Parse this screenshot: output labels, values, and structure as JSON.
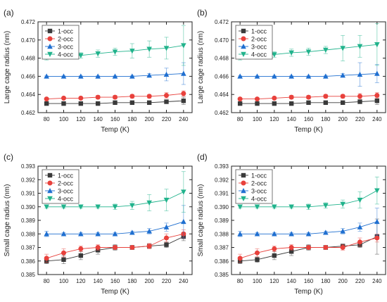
{
  "chart_data": [
    {
      "panel_label": "(a)",
      "type": "scatter",
      "xlabel": "Temp (K)",
      "ylabel": "Large cage radius (nm)",
      "x": [
        80,
        100,
        120,
        140,
        160,
        180,
        200,
        220,
        240
      ],
      "xlim": [
        70,
        250
      ],
      "ylim": [
        0.462,
        0.472
      ],
      "xticks": [
        "80",
        "100",
        "120",
        "140",
        "160",
        "180",
        "200",
        "220",
        "240"
      ],
      "yticks": [
        "0.462",
        "0.464",
        "0.466",
        "0.468",
        "0.470",
        "0.472"
      ],
      "legend_position": "top-left",
      "series": [
        {
          "name": "1-occ",
          "marker": "square",
          "color": "#3a3a3a",
          "values": [
            0.463,
            0.463,
            0.463,
            0.463,
            0.4631,
            0.4631,
            0.4631,
            0.4632,
            0.4633
          ],
          "errors": [
            5e-05,
            5e-05,
            5e-05,
            5e-05,
            5e-05,
            8e-05,
            0.0001,
            0.0002,
            0.0004
          ]
        },
        {
          "name": "2-occ",
          "marker": "circle",
          "color": "#e8413c",
          "values": [
            0.4635,
            0.4636,
            0.4636,
            0.4637,
            0.4637,
            0.4638,
            0.4638,
            0.4639,
            0.4641
          ],
          "errors": [
            0.0001,
            0.0001,
            0.0001,
            0.0002,
            0.0002,
            0.0002,
            0.0002,
            0.0003,
            0.0003
          ]
        },
        {
          "name": "3-occ",
          "marker": "triangle-up",
          "color": "#1f6fd0",
          "values": [
            0.466,
            0.466,
            0.466,
            0.466,
            0.466,
            0.466,
            0.4661,
            0.4662,
            0.4663
          ],
          "errors": [
            5e-05,
            5e-05,
            5e-05,
            5e-05,
            5e-05,
            0.0001,
            0.0002,
            0.0007,
            0.0012
          ]
        },
        {
          "name": "4-occ",
          "marker": "triangle-down",
          "color": "#21b38c",
          "values": [
            0.4681,
            0.4682,
            0.4683,
            0.4685,
            0.4687,
            0.4688,
            0.469,
            0.4691,
            0.4694
          ],
          "errors": [
            0.0003,
            0.0003,
            0.0003,
            0.0004,
            0.0004,
            0.0008,
            0.0009,
            0.0012,
            0.0022
          ]
        }
      ]
    },
    {
      "panel_label": "(b)",
      "type": "scatter",
      "xlabel": "Temp (K)",
      "ylabel": "Large cage radius (nm)",
      "x": [
        80,
        100,
        120,
        140,
        160,
        180,
        200,
        220,
        240
      ],
      "xlim": [
        70,
        250
      ],
      "ylim": [
        0.462,
        0.472
      ],
      "xticks": [
        "80",
        "100",
        "120",
        "140",
        "160",
        "180",
        "200",
        "220",
        "240"
      ],
      "yticks": [
        "0.462",
        "0.464",
        "0.466",
        "0.468",
        "0.470",
        "0.472"
      ],
      "legend_position": "top-left",
      "series": [
        {
          "name": "1-occ",
          "marker": "square",
          "color": "#3a3a3a",
          "values": [
            0.463,
            0.463,
            0.463,
            0.463,
            0.4631,
            0.4631,
            0.4631,
            0.4632,
            0.4633
          ],
          "errors": [
            5e-05,
            5e-05,
            5e-05,
            5e-05,
            5e-05,
            8e-05,
            0.0001,
            0.0002,
            0.0004
          ]
        },
        {
          "name": "2-occ",
          "marker": "circle",
          "color": "#e8413c",
          "values": [
            0.4635,
            0.4635,
            0.4636,
            0.4637,
            0.4637,
            0.4638,
            0.4638,
            0.4638,
            0.4639
          ],
          "errors": [
            0.0001,
            0.0001,
            0.0001,
            0.0002,
            0.0002,
            0.0002,
            0.0002,
            0.0003,
            0.0003
          ]
        },
        {
          "name": "3-occ",
          "marker": "triangle-up",
          "color": "#1f6fd0",
          "values": [
            0.466,
            0.466,
            0.466,
            0.466,
            0.466,
            0.466,
            0.4661,
            0.4662,
            0.4663
          ],
          "errors": [
            5e-05,
            5e-05,
            5e-05,
            5e-05,
            5e-05,
            0.0001,
            0.0002,
            0.0013,
            0.001
          ]
        },
        {
          "name": "4-occ",
          "marker": "triangle-down",
          "color": "#21b38c",
          "values": [
            0.4681,
            0.4682,
            0.4684,
            0.4686,
            0.4687,
            0.4689,
            0.4691,
            0.4693,
            0.4695
          ],
          "errors": [
            0.0003,
            0.0003,
            0.0003,
            0.0004,
            0.0004,
            0.0004,
            0.0014,
            0.0012,
            0.0023
          ]
        }
      ]
    },
    {
      "panel_label": "(c)",
      "type": "scatter",
      "xlabel": "Temp (K)",
      "ylabel": "Small cage radius (nm)",
      "x": [
        80,
        100,
        120,
        140,
        160,
        180,
        200,
        220,
        240
      ],
      "xlim": [
        70,
        250
      ],
      "ylim": [
        0.385,
        0.393
      ],
      "xticks": [
        "80",
        "100",
        "120",
        "140",
        "160",
        "180",
        "200",
        "220",
        "240"
      ],
      "yticks": [
        "0.385",
        "0.386",
        "0.387",
        "0.388",
        "0.389",
        "0.390",
        "0.391",
        "0.392",
        "0.393"
      ],
      "legend_position": "top-left",
      "series": [
        {
          "name": "1-occ",
          "marker": "square",
          "color": "#3a3a3a",
          "values": [
            0.386,
            0.3861,
            0.3864,
            0.3868,
            0.387,
            0.387,
            0.3871,
            0.3872,
            0.3878
          ],
          "errors": [
            0.0002,
            0.0003,
            0.0003,
            0.0003,
            0.0002,
            0.0001,
            0.0001,
            0.0002,
            0.0003
          ]
        },
        {
          "name": "2-occ",
          "marker": "circle",
          "color": "#e8413c",
          "values": [
            0.3862,
            0.3866,
            0.3869,
            0.387,
            0.387,
            0.387,
            0.3871,
            0.3877,
            0.388
          ],
          "errors": [
            0.0003,
            0.0003,
            0.0002,
            0.0002,
            0.0001,
            0.0001,
            0.0002,
            0.0003,
            0.0003
          ]
        },
        {
          "name": "3-occ",
          "marker": "triangle-up",
          "color": "#1f6fd0",
          "values": [
            0.388,
            0.388,
            0.388,
            0.388,
            0.388,
            0.3881,
            0.3882,
            0.3885,
            0.3889
          ],
          "errors": [
            0.0002,
            0.0001,
            0.0001,
            0.0001,
            0.0001,
            0.0001,
            0.0002,
            0.0003,
            0.0012
          ]
        },
        {
          "name": "4-occ",
          "marker": "triangle-down",
          "color": "#21b38c",
          "values": [
            0.39,
            0.39,
            0.39,
            0.39,
            0.39,
            0.3901,
            0.3903,
            0.3905,
            0.3911
          ],
          "errors": [
            0.0001,
            0.0001,
            0.0001,
            0.0001,
            0.0002,
            0.0003,
            0.0006,
            0.0008,
            0.0015
          ]
        }
      ]
    },
    {
      "panel_label": "(d)",
      "type": "scatter",
      "xlabel": "Temp (K)",
      "ylabel": "Small cage radius (nm)",
      "x": [
        80,
        100,
        120,
        140,
        160,
        180,
        200,
        220,
        240
      ],
      "xlim": [
        70,
        250
      ],
      "ylim": [
        0.385,
        0.393
      ],
      "xticks": [
        "80",
        "100",
        "120",
        "140",
        "160",
        "180",
        "200",
        "220",
        "240"
      ],
      "yticks": [
        "0.385",
        "0.386",
        "0.387",
        "0.388",
        "0.389",
        "0.390",
        "0.391",
        "0.392",
        "0.393"
      ],
      "legend_position": "top-left",
      "series": [
        {
          "name": "1-occ",
          "marker": "square",
          "color": "#3a3a3a",
          "values": [
            0.386,
            0.3861,
            0.3864,
            0.3867,
            0.387,
            0.387,
            0.3871,
            0.3872,
            0.3878
          ],
          "errors": [
            0.0002,
            0.0002,
            0.0003,
            0.0003,
            0.0002,
            0.0001,
            0.0001,
            0.0002,
            0.0013
          ]
        },
        {
          "name": "2-occ",
          "marker": "circle",
          "color": "#e8413c",
          "values": [
            0.3862,
            0.3866,
            0.3869,
            0.387,
            0.387,
            0.387,
            0.387,
            0.3874,
            0.3877
          ],
          "errors": [
            0.0003,
            0.0003,
            0.0002,
            0.0002,
            0.0001,
            0.0001,
            0.0002,
            0.0003,
            0.0003
          ]
        },
        {
          "name": "3-occ",
          "marker": "triangle-up",
          "color": "#1f6fd0",
          "values": [
            0.388,
            0.388,
            0.388,
            0.388,
            0.388,
            0.3881,
            0.3882,
            0.3885,
            0.3889
          ],
          "errors": [
            0.0002,
            0.0001,
            0.0001,
            0.0001,
            0.0001,
            0.0001,
            0.0002,
            0.0003,
            0.001
          ]
        },
        {
          "name": "4-occ",
          "marker": "triangle-down",
          "color": "#21b38c",
          "values": [
            0.39,
            0.39,
            0.39,
            0.39,
            0.39,
            0.3901,
            0.3902,
            0.3905,
            0.3912
          ],
          "errors": [
            0.0001,
            0.0001,
            0.0001,
            0.0001,
            0.0002,
            0.0002,
            0.0003,
            0.0006,
            0.001
          ]
        }
      ]
    }
  ]
}
